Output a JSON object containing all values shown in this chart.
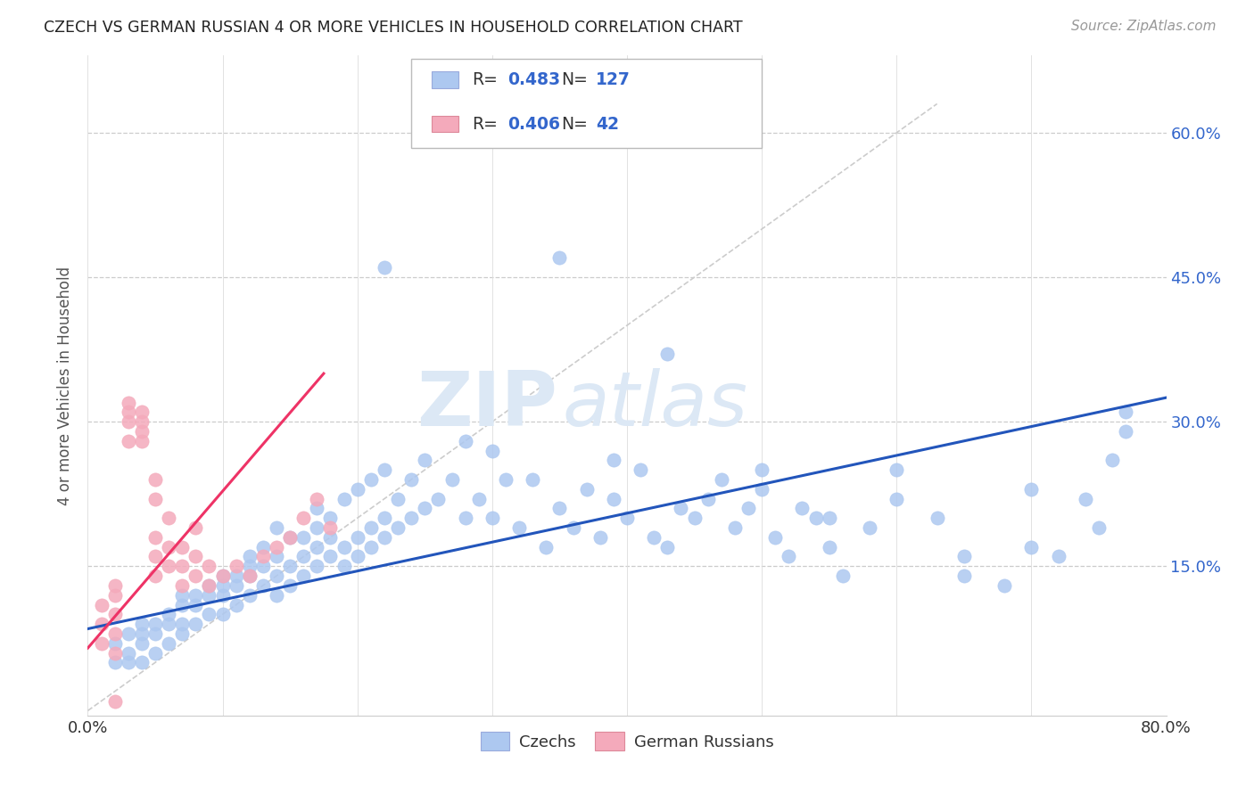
{
  "title": "CZECH VS GERMAN RUSSIAN 4 OR MORE VEHICLES IN HOUSEHOLD CORRELATION CHART",
  "source": "Source: ZipAtlas.com",
  "ylabel": "4 or more Vehicles in Household",
  "xlim": [
    0.0,
    0.8
  ],
  "ylim": [
    -0.005,
    0.68
  ],
  "ytick_positions": [
    0.15,
    0.3,
    0.45,
    0.6
  ],
  "ytick_labels": [
    "15.0%",
    "30.0%",
    "45.0%",
    "60.0%"
  ],
  "blue_R": "0.483",
  "blue_N": "127",
  "pink_R": "0.406",
  "pink_N": "42",
  "blue_color": "#adc8f0",
  "pink_color": "#f4aabb",
  "blue_line_color": "#2255bb",
  "pink_line_color": "#ee3366",
  "diag_line_color": "#cccccc",
  "watermark_color": "#dce8f5",
  "legend_czechs": "Czechs",
  "legend_german_russians": "German Russians",
  "blue_scatter_x": [
    0.37,
    0.02,
    0.02,
    0.03,
    0.03,
    0.03,
    0.04,
    0.04,
    0.04,
    0.04,
    0.05,
    0.05,
    0.05,
    0.06,
    0.06,
    0.06,
    0.07,
    0.07,
    0.07,
    0.07,
    0.08,
    0.08,
    0.08,
    0.09,
    0.09,
    0.09,
    0.1,
    0.1,
    0.1,
    0.1,
    0.11,
    0.11,
    0.11,
    0.12,
    0.12,
    0.12,
    0.12,
    0.13,
    0.13,
    0.13,
    0.14,
    0.14,
    0.14,
    0.14,
    0.15,
    0.15,
    0.15,
    0.16,
    0.16,
    0.16,
    0.17,
    0.17,
    0.17,
    0.17,
    0.18,
    0.18,
    0.18,
    0.19,
    0.19,
    0.19,
    0.2,
    0.2,
    0.2,
    0.21,
    0.21,
    0.21,
    0.22,
    0.22,
    0.22,
    0.23,
    0.23,
    0.24,
    0.24,
    0.25,
    0.25,
    0.26,
    0.27,
    0.28,
    0.28,
    0.29,
    0.3,
    0.3,
    0.31,
    0.32,
    0.33,
    0.34,
    0.35,
    0.36,
    0.37,
    0.38,
    0.39,
    0.4,
    0.41,
    0.42,
    0.43,
    0.44,
    0.45,
    0.46,
    0.47,
    0.48,
    0.49,
    0.5,
    0.51,
    0.52,
    0.53,
    0.54,
    0.55,
    0.56,
    0.58,
    0.6,
    0.63,
    0.65,
    0.68,
    0.7,
    0.72,
    0.74,
    0.75,
    0.76,
    0.77,
    0.22,
    0.35,
    0.39,
    0.43,
    0.5,
    0.55,
    0.6,
    0.65,
    0.7,
    0.77
  ],
  "blue_scatter_y": [
    0.63,
    0.05,
    0.07,
    0.05,
    0.06,
    0.08,
    0.05,
    0.07,
    0.08,
    0.09,
    0.06,
    0.08,
    0.09,
    0.07,
    0.09,
    0.1,
    0.08,
    0.09,
    0.11,
    0.12,
    0.09,
    0.11,
    0.12,
    0.1,
    0.12,
    0.13,
    0.1,
    0.12,
    0.13,
    0.14,
    0.11,
    0.13,
    0.14,
    0.12,
    0.14,
    0.15,
    0.16,
    0.13,
    0.15,
    0.17,
    0.12,
    0.14,
    0.16,
    0.19,
    0.13,
    0.15,
    0.18,
    0.14,
    0.16,
    0.18,
    0.15,
    0.17,
    0.19,
    0.21,
    0.16,
    0.18,
    0.2,
    0.15,
    0.17,
    0.22,
    0.16,
    0.18,
    0.23,
    0.17,
    0.19,
    0.24,
    0.18,
    0.2,
    0.25,
    0.19,
    0.22,
    0.2,
    0.24,
    0.21,
    0.26,
    0.22,
    0.24,
    0.2,
    0.28,
    0.22,
    0.2,
    0.27,
    0.24,
    0.19,
    0.24,
    0.17,
    0.21,
    0.19,
    0.23,
    0.18,
    0.22,
    0.2,
    0.25,
    0.18,
    0.17,
    0.21,
    0.2,
    0.22,
    0.24,
    0.19,
    0.21,
    0.23,
    0.18,
    0.16,
    0.21,
    0.2,
    0.17,
    0.14,
    0.19,
    0.22,
    0.2,
    0.14,
    0.13,
    0.17,
    0.16,
    0.22,
    0.19,
    0.26,
    0.29,
    0.46,
    0.47,
    0.26,
    0.37,
    0.25,
    0.2,
    0.25,
    0.16,
    0.23,
    0.31
  ],
  "pink_scatter_x": [
    0.01,
    0.01,
    0.01,
    0.02,
    0.02,
    0.02,
    0.02,
    0.02,
    0.03,
    0.03,
    0.03,
    0.03,
    0.04,
    0.04,
    0.04,
    0.04,
    0.05,
    0.05,
    0.05,
    0.05,
    0.05,
    0.06,
    0.06,
    0.06,
    0.07,
    0.07,
    0.07,
    0.08,
    0.08,
    0.08,
    0.09,
    0.09,
    0.1,
    0.11,
    0.12,
    0.13,
    0.14,
    0.15,
    0.16,
    0.17,
    0.18,
    0.02
  ],
  "pink_scatter_y": [
    0.07,
    0.09,
    0.11,
    0.06,
    0.08,
    0.1,
    0.12,
    0.13,
    0.28,
    0.3,
    0.31,
    0.32,
    0.28,
    0.29,
    0.3,
    0.31,
    0.14,
    0.16,
    0.18,
    0.22,
    0.24,
    0.15,
    0.17,
    0.2,
    0.13,
    0.15,
    0.17,
    0.14,
    0.16,
    0.19,
    0.13,
    0.15,
    0.14,
    0.15,
    0.14,
    0.16,
    0.17,
    0.18,
    0.2,
    0.22,
    0.19,
    0.01
  ],
  "blue_line_x": [
    0.0,
    0.8
  ],
  "blue_line_y": [
    0.085,
    0.325
  ],
  "pink_line_x": [
    0.0,
    0.175
  ],
  "pink_line_y": [
    0.065,
    0.35
  ],
  "diag_line_x": [
    0.0,
    0.63
  ],
  "diag_line_y": [
    0.0,
    0.63
  ]
}
